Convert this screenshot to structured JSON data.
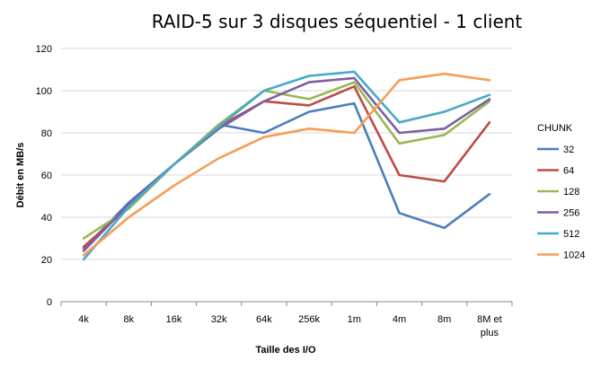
{
  "chart_data": {
    "type": "line",
    "title": "RAID-5 sur 3 disques séquentiel - 1 client",
    "xlabel": "Taille des I/O",
    "ylabel": "Débit en MB/s",
    "categories": [
      "4k",
      "8k",
      "16k",
      "32k",
      "64k",
      "256k",
      "1m",
      "4m",
      "8m",
      "8M et plus"
    ],
    "ylim": [
      0,
      120
    ],
    "yticks": [
      0,
      20,
      40,
      60,
      80,
      100,
      120
    ],
    "grid": true,
    "legend_title": "CHUNK",
    "legend_position": "right",
    "series": [
      {
        "name": "32",
        "color": "#4a7ebb",
        "values": [
          25,
          47,
          65,
          84,
          80,
          90,
          94,
          42,
          35,
          51
        ]
      },
      {
        "name": "64",
        "color": "#be4b48",
        "values": [
          26,
          45,
          65,
          83,
          95,
          93,
          102,
          60,
          57,
          85
        ]
      },
      {
        "name": "128",
        "color": "#98b954",
        "values": [
          30,
          44,
          65,
          84,
          100,
          96,
          104,
          75,
          79,
          95
        ]
      },
      {
        "name": "256",
        "color": "#7d5fa0",
        "values": [
          24,
          46,
          65,
          82,
          95,
          104,
          106,
          80,
          82,
          96
        ]
      },
      {
        "name": "512",
        "color": "#46aac5",
        "values": [
          20,
          45,
          65,
          83,
          100,
          107,
          109,
          85,
          90,
          98
        ]
      },
      {
        "name": "1024",
        "color": "#f59d56",
        "values": [
          22,
          40,
          55,
          68,
          78,
          82,
          80,
          105,
          108,
          105
        ]
      }
    ]
  }
}
